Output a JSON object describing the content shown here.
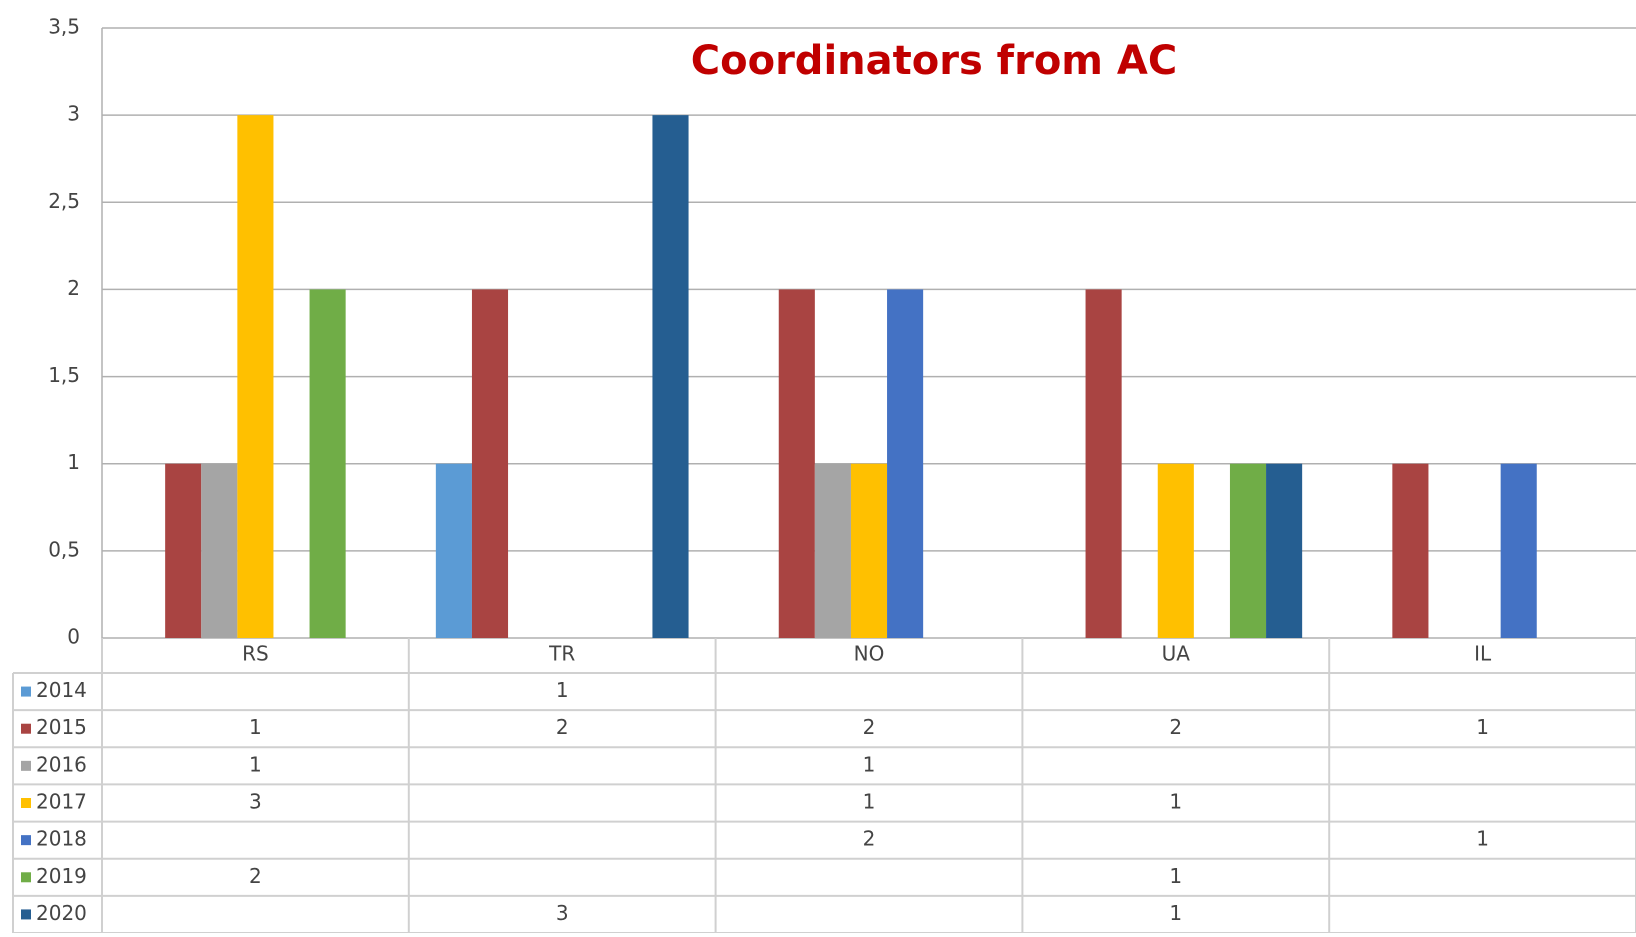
{
  "chart_data": {
    "type": "bar",
    "title": "Coordinators from AC",
    "categories": [
      "RS",
      "TR",
      "NO",
      "UA",
      "IL"
    ],
    "series": [
      {
        "name": "2014",
        "color": "#5b9bd5",
        "values": [
          null,
          1,
          null,
          null,
          null
        ]
      },
      {
        "name": "2015",
        "color": "#a94442",
        "values": [
          1,
          2,
          2,
          2,
          1
        ]
      },
      {
        "name": "2016",
        "color": "#a5a5a5",
        "values": [
          1,
          null,
          1,
          null,
          null
        ]
      },
      {
        "name": "2017",
        "color": "#ffc000",
        "values": [
          3,
          null,
          1,
          1,
          null
        ]
      },
      {
        "name": "2018",
        "color": "#4472c4",
        "values": [
          null,
          null,
          2,
          null,
          1
        ]
      },
      {
        "name": "2019",
        "color": "#70ad47",
        "values": [
          2,
          null,
          null,
          1,
          null
        ]
      },
      {
        "name": "2020",
        "color": "#255e91",
        "values": [
          null,
          3,
          null,
          1,
          null
        ]
      }
    ],
    "ylim": [
      0,
      3.5
    ],
    "yticks": [
      0,
      {
        "value": 0.5,
        "label": "0,5"
      },
      1,
      {
        "value": 1.5,
        "label": "1,5"
      },
      2,
      {
        "value": 2.5,
        "label": "2,5"
      },
      3,
      {
        "value": 3.5,
        "label": "3,5"
      }
    ],
    "grid": true,
    "legend": "table"
  }
}
